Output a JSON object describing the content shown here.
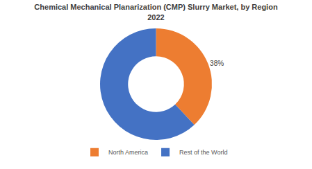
{
  "chart_data": {
    "type": "pie",
    "title": "Chemical Mechanical Planarization (CMP) Slurry Market, by Region",
    "subtitle": "2022",
    "categories": [
      "North America",
      "Rest of the World"
    ],
    "values": [
      38,
      62
    ],
    "value_labels": [
      "38%",
      null
    ],
    "colors": [
      "#ED7D31",
      "#4472C4"
    ],
    "data_labels": true,
    "legend": "bottom"
  }
}
